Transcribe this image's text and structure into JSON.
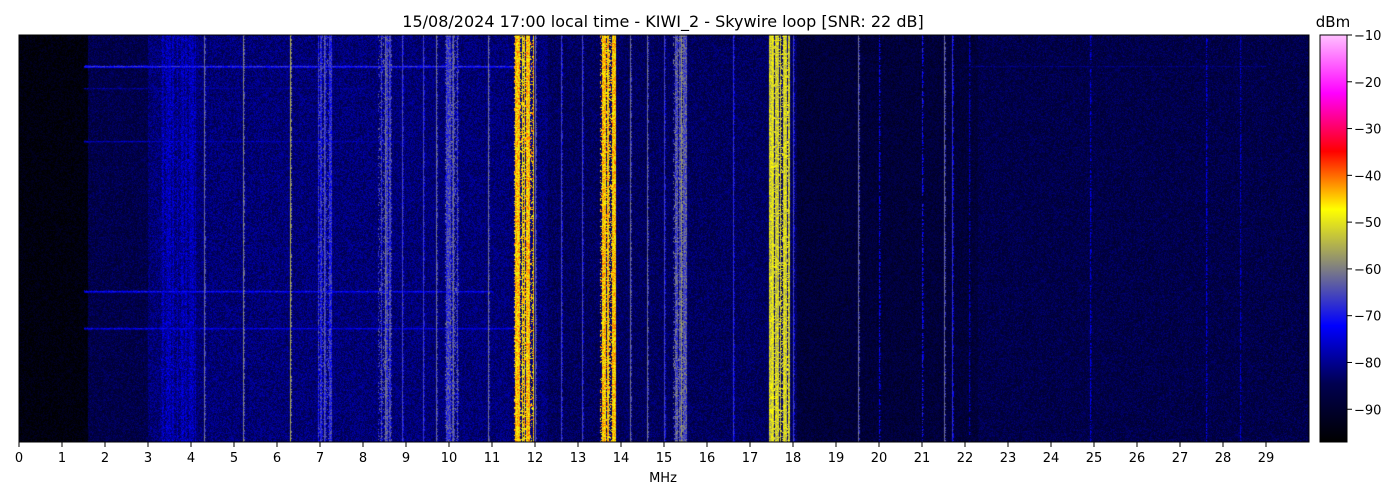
{
  "chart_data": {
    "type": "heatmap",
    "title": "15/08/2024 17:00 local time - KIWI_2 - Skywire loop [SNR: 22 dB]",
    "xlabel": "MHz",
    "xlim": [
      0,
      30
    ],
    "x_ticks": [
      "0",
      "1",
      "2",
      "3",
      "4",
      "5",
      "6",
      "7",
      "8",
      "9",
      "10",
      "11",
      "12",
      "13",
      "14",
      "15",
      "16",
      "17",
      "18",
      "19",
      "20",
      "21",
      "22",
      "23",
      "24",
      "25",
      "26",
      "27",
      "28",
      "29"
    ],
    "colorbar": {
      "label": "dBm",
      "range": [
        -97,
        -10
      ],
      "ticks": [
        "−10",
        "−20",
        "−30",
        "−40",
        "−50",
        "−60",
        "−70",
        "−80",
        "−90"
      ],
      "tick_values": [
        -10,
        -20,
        -30,
        -40,
        -50,
        -60,
        -70,
        -80,
        -90
      ],
      "colors": [
        "#000000",
        "#000050",
        "#0000ff",
        "#808080",
        "#ffff00",
        "#ff0000",
        "#ff00ff",
        "#ffc0ff"
      ]
    },
    "noise_floor_dbm": [
      {
        "from_mhz": 0,
        "to_mhz": 1.6,
        "dbm": -95
      },
      {
        "from_mhz": 1.6,
        "to_mhz": 3.0,
        "dbm": -86
      },
      {
        "from_mhz": 3.0,
        "to_mhz": 12.3,
        "dbm": -82
      },
      {
        "from_mhz": 12.3,
        "to_mhz": 18.1,
        "dbm": -84
      },
      {
        "from_mhz": 18.1,
        "to_mhz": 22.3,
        "dbm": -88
      },
      {
        "from_mhz": 22.3,
        "to_mhz": 30,
        "dbm": -86
      }
    ],
    "bands": [
      {
        "from_mhz": 11.5,
        "to_mhz": 11.95,
        "dbm": -45
      },
      {
        "from_mhz": 13.5,
        "to_mhz": 13.85,
        "dbm": -45
      },
      {
        "from_mhz": 17.45,
        "to_mhz": 17.9,
        "dbm": -52
      },
      {
        "from_mhz": 8.35,
        "to_mhz": 8.65,
        "dbm": -66
      },
      {
        "from_mhz": 9.9,
        "to_mhz": 10.2,
        "dbm": -66
      },
      {
        "from_mhz": 15.2,
        "to_mhz": 15.5,
        "dbm": -64
      },
      {
        "from_mhz": 6.95,
        "to_mhz": 7.25,
        "dbm": -68
      },
      {
        "from_mhz": 3.3,
        "to_mhz": 4.1,
        "dbm": -78
      }
    ],
    "carriers_mhz": [
      {
        "f": 4.3,
        "dbm": -62
      },
      {
        "f": 5.2,
        "dbm": -60
      },
      {
        "f": 6.3,
        "dbm": -56
      },
      {
        "f": 7.1,
        "dbm": -64
      },
      {
        "f": 8.5,
        "dbm": -62
      },
      {
        "f": 8.9,
        "dbm": -66
      },
      {
        "f": 9.4,
        "dbm": -66
      },
      {
        "f": 9.7,
        "dbm": -62
      },
      {
        "f": 10.1,
        "dbm": -62
      },
      {
        "f": 10.9,
        "dbm": -62
      },
      {
        "f": 11.7,
        "dbm": -48
      },
      {
        "f": 12.0,
        "dbm": -62
      },
      {
        "f": 12.6,
        "dbm": -66
      },
      {
        "f": 13.1,
        "dbm": -66
      },
      {
        "f": 13.7,
        "dbm": -50
      },
      {
        "f": 14.2,
        "dbm": -62
      },
      {
        "f": 14.6,
        "dbm": -62
      },
      {
        "f": 15.0,
        "dbm": -66
      },
      {
        "f": 15.4,
        "dbm": -58
      },
      {
        "f": 16.6,
        "dbm": -68
      },
      {
        "f": 17.5,
        "dbm": -50
      },
      {
        "f": 17.8,
        "dbm": -52
      },
      {
        "f": 18.0,
        "dbm": -66
      },
      {
        "f": 19.5,
        "dbm": -62
      },
      {
        "f": 20.0,
        "dbm": -72
      },
      {
        "f": 21.0,
        "dbm": -70
      },
      {
        "f": 21.5,
        "dbm": -62
      },
      {
        "f": 21.7,
        "dbm": -68
      },
      {
        "f": 22.1,
        "dbm": -76
      },
      {
        "f": 24.9,
        "dbm": -74
      },
      {
        "f": 27.6,
        "dbm": -74
      },
      {
        "f": 28.4,
        "dbm": -76
      }
    ],
    "horizontal_lines_mhz_range": [
      {
        "from_mhz": 1.5,
        "to_mhz": 12.0,
        "row_fraction": 0.075,
        "dbm": -68
      },
      {
        "from_mhz": 22.0,
        "to_mhz": 29.0,
        "row_fraction": 0.075,
        "dbm": -82
      },
      {
        "from_mhz": 1.5,
        "to_mhz": 11.0,
        "row_fraction": 0.63,
        "dbm": -72
      },
      {
        "from_mhz": 1.5,
        "to_mhz": 11.5,
        "row_fraction": 0.72,
        "dbm": -74
      },
      {
        "from_mhz": 1.5,
        "to_mhz": 9.0,
        "row_fraction": 0.26,
        "dbm": -78
      },
      {
        "from_mhz": 1.5,
        "to_mhz": 8.0,
        "row_fraction": 0.13,
        "dbm": -80
      }
    ]
  }
}
